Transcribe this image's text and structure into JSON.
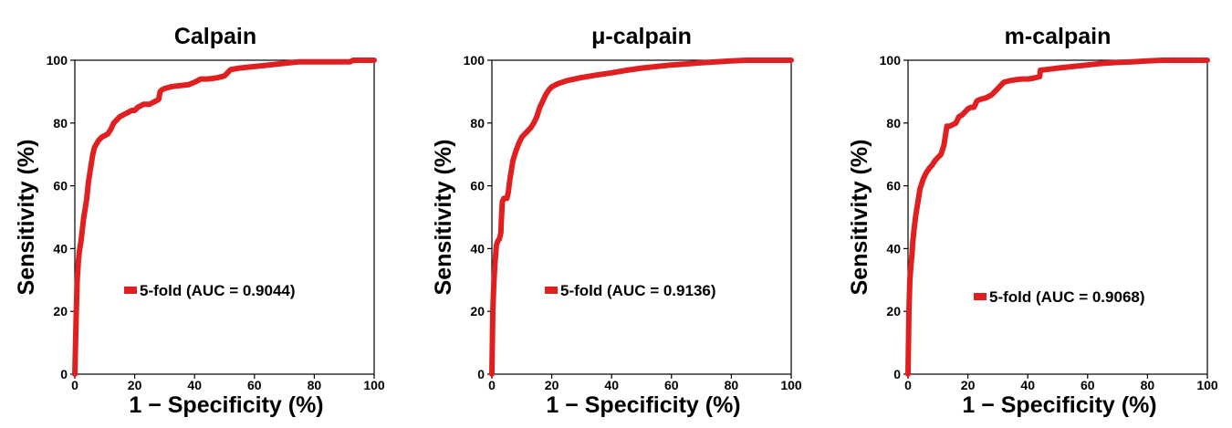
{
  "chart_data": [
    {
      "type": "line",
      "title": "Calpain",
      "xlabel": "1 − Specificity (%)",
      "ylabel": "Sensitivity (%)",
      "xlim": [
        0,
        100
      ],
      "ylim": [
        0,
        100
      ],
      "xticks": [
        "0",
        "20",
        "40",
        "60",
        "80",
        "100"
      ],
      "yticks": [
        "0",
        "20",
        "40",
        "60",
        "80",
        "100"
      ],
      "legend": "top-left",
      "grid": false,
      "series": [
        {
          "name": "5-fold (AUC = 0.9044)",
          "color": "#e02020",
          "x": [
            0,
            0.5,
            0.8,
            1.2,
            1.5,
            2,
            2.5,
            3,
            3.5,
            4,
            4.5,
            5,
            5.5,
            6,
            6.5,
            7,
            8,
            9,
            10,
            11,
            12,
            13,
            14,
            15,
            16,
            17,
            18,
            19,
            20,
            21,
            22,
            23,
            24,
            25,
            26,
            27,
            28,
            28.5,
            29,
            30,
            32,
            34,
            36,
            38,
            40,
            41,
            42,
            44,
            46,
            48,
            50,
            51,
            52,
            55,
            60,
            65,
            70,
            75,
            80,
            85,
            90,
            92,
            93,
            95,
            100
          ],
          "y": [
            0,
            20,
            30,
            36,
            39,
            42,
            46,
            50,
            53,
            56,
            61,
            64,
            67,
            70,
            72,
            73,
            74.5,
            75.5,
            76,
            76.5,
            78,
            80,
            81,
            82,
            82.5,
            83,
            83.5,
            84,
            84,
            85,
            85.5,
            86,
            86,
            86,
            86.5,
            87,
            87.5,
            90,
            90.5,
            91,
            91.5,
            91.8,
            92,
            92.2,
            93,
            93.5,
            94,
            94,
            94.2,
            94.5,
            95,
            96,
            97,
            97.5,
            98,
            98.5,
            99,
            99.5,
            99.5,
            99.5,
            99.5,
            99.5,
            100,
            100,
            100
          ]
        }
      ]
    },
    {
      "type": "line",
      "title": "μ-calpain",
      "xlabel": "1 − Specificity (%)",
      "ylabel": "Sensitivity (%)",
      "xlim": [
        0,
        100
      ],
      "ylim": [
        0,
        100
      ],
      "xticks": [
        "0",
        "20",
        "40",
        "60",
        "80",
        "100"
      ],
      "yticks": [
        "0",
        "20",
        "40",
        "60",
        "80",
        "100"
      ],
      "legend": "top-left",
      "grid": false,
      "series": [
        {
          "name": "5-fold (AUC = 0.9136)",
          "color": "#e02020",
          "x": [
            0,
            0.3,
            0.6,
            1,
            1.5,
            2,
            2.5,
            3,
            3.2,
            3.5,
            4,
            4.5,
            5,
            5.5,
            6,
            7,
            8,
            9,
            10,
            11,
            12,
            13,
            14,
            15,
            16,
            17,
            18,
            19,
            20,
            22,
            25,
            30,
            35,
            40,
            45,
            50,
            55,
            60,
            70,
            80,
            85,
            90,
            100
          ],
          "y": [
            0,
            20,
            28,
            35,
            41,
            42.5,
            43,
            45,
            50,
            55,
            56,
            56,
            56,
            58,
            62,
            68,
            71,
            73.5,
            75.5,
            76.5,
            77.5,
            78.5,
            80,
            82,
            85,
            87,
            89,
            90.5,
            91.5,
            92.5,
            93.5,
            94.5,
            95.3,
            96,
            96.8,
            97.5,
            98,
            98.5,
            99.2,
            99.8,
            100,
            100,
            100
          ]
        }
      ]
    },
    {
      "type": "line",
      "title": "m-calpain",
      "xlabel": "1 − Specificity (%)",
      "ylabel": "Sensitivity (%)",
      "xlim": [
        0,
        100
      ],
      "ylim": [
        0,
        100
      ],
      "xticks": [
        "0",
        "20",
        "40",
        "60",
        "80",
        "100"
      ],
      "yticks": [
        "0",
        "20",
        "40",
        "60",
        "80",
        "100"
      ],
      "legend": "top-left",
      "grid": false,
      "series": [
        {
          "name": "5-fold (AUC = 0.9068)",
          "color": "#e02020",
          "x": [
            0,
            0.3,
            0.6,
            1,
            1.3,
            1.6,
            2,
            2.5,
            3,
            3.5,
            4,
            4.5,
            5,
            5.5,
            6,
            7,
            8,
            9,
            10,
            11,
            12,
            12.5,
            13,
            14,
            15,
            16,
            17,
            18,
            19,
            20,
            21,
            22,
            22.5,
            23,
            24,
            26,
            28,
            30,
            32,
            34,
            36,
            38,
            40,
            42,
            44,
            44.2,
            46,
            50,
            55,
            60,
            65,
            70,
            75,
            80,
            85,
            90,
            100
          ],
          "y": [
            0,
            20,
            30,
            35,
            38,
            42,
            46,
            50,
            53,
            56,
            59,
            60.5,
            62,
            63,
            64,
            65.5,
            66.5,
            68,
            69,
            70,
            73,
            76,
            79,
            79,
            79.5,
            80,
            82,
            82.5,
            83.5,
            84.5,
            85,
            85,
            86,
            87,
            87.5,
            88,
            89,
            91,
            93,
            93.5,
            93.8,
            94,
            94,
            94.3,
            94.8,
            96.8,
            97,
            97.5,
            98,
            98.5,
            99,
            99.3,
            99.5,
            99.8,
            100,
            100,
            100
          ]
        }
      ]
    }
  ]
}
